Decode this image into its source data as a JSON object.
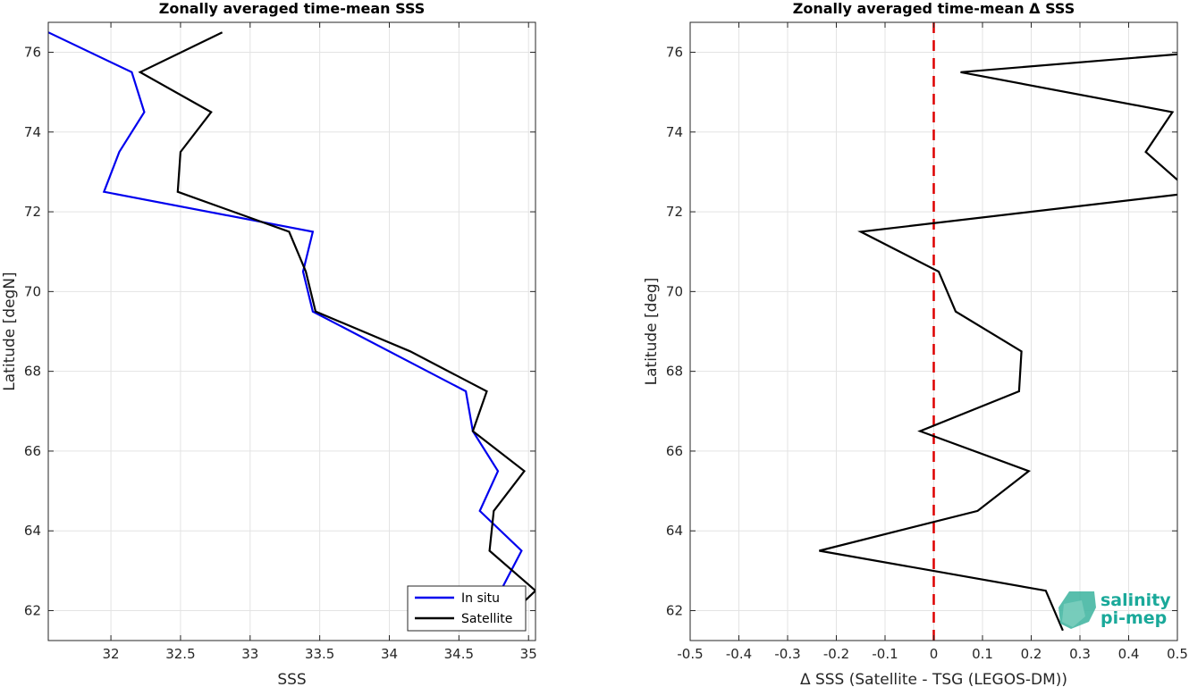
{
  "chart_data": [
    {
      "type": "line",
      "title": "Zonally averaged time-mean SSS",
      "xlabel": "SSS",
      "ylabel": "Latitude [degN]",
      "xlim": [
        31.55,
        35.05
      ],
      "ylim": [
        61.25,
        76.75
      ],
      "xticks": [
        32,
        32.5,
        33,
        33.5,
        34,
        34.5,
        35
      ],
      "xtick_labels": [
        "32",
        "32.5",
        "33",
        "33.5",
        "34",
        "34.5",
        "35"
      ],
      "yticks": [
        62,
        64,
        66,
        68,
        70,
        72,
        74,
        76
      ],
      "ytick_labels": [
        "62",
        "64",
        "66",
        "68",
        "70",
        "72",
        "74",
        "76"
      ],
      "grid": true,
      "legend": "bottom-right",
      "series": [
        {
          "name": "In situ",
          "color": "#0000ee",
          "x": [
            31.55,
            32.15,
            32.24,
            32.06,
            31.95,
            33.45,
            33.38,
            33.45,
            34.55,
            34.6,
            34.78,
            34.65,
            34.95,
            34.8,
            34.47
          ],
          "y": [
            76.5,
            75.5,
            74.5,
            73.5,
            72.5,
            71.5,
            70.5,
            69.5,
            67.5,
            66.5,
            65.5,
            64.5,
            63.5,
            62.5,
            61.5
          ]
        },
        {
          "name": "Satellite",
          "color": "#000000",
          "x": [
            32.8,
            32.21,
            32.72,
            32.5,
            32.48,
            33.28,
            33.4,
            33.47,
            34.15,
            34.7,
            34.6,
            34.97,
            34.75,
            34.72,
            35.05,
            34.75
          ],
          "y": [
            76.5,
            75.5,
            74.5,
            73.5,
            72.5,
            71.5,
            70.5,
            69.5,
            68.5,
            67.5,
            66.5,
            65.5,
            64.5,
            63.5,
            62.5,
            61.5
          ]
        }
      ]
    },
    {
      "type": "line",
      "title": "Zonally averaged time-mean Δ SSS",
      "xlabel": "Δ SSS (Satellite - TSG (LEGOS-DM))",
      "ylabel": "Latitude [deg]",
      "xlim": [
        -0.5,
        0.5
      ],
      "ylim": [
        61.25,
        76.75
      ],
      "xticks": [
        -0.5,
        -0.4,
        -0.3,
        -0.2,
        -0.1,
        0,
        0.1,
        0.2,
        0.3,
        0.4,
        0.5
      ],
      "xtick_labels": [
        "-0.5",
        "-0.4",
        "-0.3",
        "-0.2",
        "-0.1",
        "0",
        "0.1",
        "0.2",
        "0.3",
        "0.4",
        "0.5"
      ],
      "yticks": [
        62,
        64,
        66,
        68,
        70,
        72,
        74,
        76
      ],
      "ytick_labels": [
        "62",
        "64",
        "66",
        "68",
        "70",
        "72",
        "74",
        "76"
      ],
      "grid": true,
      "reference_line": {
        "x": 0,
        "color": "#dd0000",
        "style": "dashed"
      },
      "series": [
        {
          "color": "#000000",
          "x": [
            0.55,
            0.055,
            0.49,
            0.435,
            0.5,
            0.55,
            -0.15,
            0.01,
            0.045,
            0.18,
            0.175,
            -0.028,
            0.195,
            0.09,
            -0.235,
            0.23,
            0.265
          ],
          "y": [
            76.0,
            75.5,
            74.5,
            73.5,
            72.8,
            72.5,
            71.5,
            70.5,
            69.5,
            68.5,
            67.5,
            66.5,
            65.5,
            64.5,
            63.5,
            62.5,
            61.5
          ]
        }
      ]
    }
  ],
  "logo": {
    "line1": "salinity",
    "line2": "pi-mep"
  }
}
